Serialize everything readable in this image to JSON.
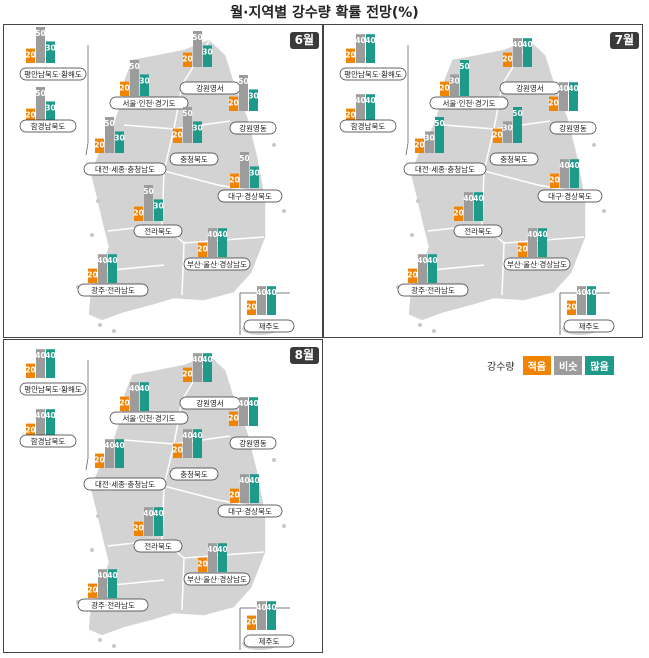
{
  "title": "월·지역별 강수량 확률 전망(%)",
  "legend": {
    "label": "강수량",
    "items": [
      {
        "name": "적음",
        "color": "#f08300"
      },
      {
        "name": "비슷",
        "color": "#9c9c9c"
      },
      {
        "name": "많음",
        "color": "#1e9a8a"
      }
    ]
  },
  "chart_data": [
    {
      "type": "bar",
      "month": "6월",
      "series_names": [
        "적음",
        "비슷",
        "많음"
      ],
      "regions": [
        {
          "name": "평안남북도·황해도",
          "values": [
            20,
            50,
            30
          ]
        },
        {
          "name": "함경남북도",
          "values": [
            20,
            50,
            30
          ]
        },
        {
          "name": "서울·인천·경기도",
          "values": [
            20,
            50,
            30
          ]
        },
        {
          "name": "강원영서",
          "values": [
            20,
            50,
            30
          ]
        },
        {
          "name": "강원영동",
          "values": [
            20,
            50,
            30
          ]
        },
        {
          "name": "대전·세종·충청남도",
          "values": [
            20,
            50,
            30
          ]
        },
        {
          "name": "충청북도",
          "values": [
            20,
            50,
            30
          ]
        },
        {
          "name": "대구·경상북도",
          "values": [
            20,
            50,
            30
          ]
        },
        {
          "name": "전라북도",
          "values": [
            20,
            50,
            30
          ]
        },
        {
          "name": "부산·울산·경상남도",
          "values": [
            20,
            40,
            40
          ]
        },
        {
          "name": "광주·전라남도",
          "values": [
            20,
            40,
            40
          ]
        },
        {
          "name": "제주도",
          "values": [
            20,
            40,
            40
          ]
        }
      ]
    },
    {
      "type": "bar",
      "month": "7월",
      "series_names": [
        "적음",
        "비슷",
        "많음"
      ],
      "regions": [
        {
          "name": "평안남북도·황해도",
          "values": [
            20,
            40,
            40
          ]
        },
        {
          "name": "함경남북도",
          "values": [
            20,
            40,
            40
          ]
        },
        {
          "name": "서울·인천·경기도",
          "values": [
            20,
            30,
            50
          ]
        },
        {
          "name": "강원영서",
          "values": [
            20,
            40,
            40
          ]
        },
        {
          "name": "강원영동",
          "values": [
            20,
            40,
            40
          ]
        },
        {
          "name": "대전·세종·충청남도",
          "values": [
            20,
            30,
            50
          ]
        },
        {
          "name": "충청북도",
          "values": [
            20,
            30,
            50
          ]
        },
        {
          "name": "대구·경상북도",
          "values": [
            20,
            40,
            40
          ]
        },
        {
          "name": "전라북도",
          "values": [
            20,
            40,
            40
          ]
        },
        {
          "name": "부산·울산·경상남도",
          "values": [
            20,
            40,
            40
          ]
        },
        {
          "name": "광주·전라남도",
          "values": [
            20,
            40,
            40
          ]
        },
        {
          "name": "제주도",
          "values": [
            20,
            40,
            40
          ]
        }
      ]
    },
    {
      "type": "bar",
      "month": "8월",
      "series_names": [
        "적음",
        "비슷",
        "많음"
      ],
      "regions": [
        {
          "name": "평안남북도·황해도",
          "values": [
            20,
            40,
            40
          ]
        },
        {
          "name": "함경남북도",
          "values": [
            20,
            40,
            40
          ]
        },
        {
          "name": "서울·인천·경기도",
          "values": [
            20,
            40,
            40
          ]
        },
        {
          "name": "강원영서",
          "values": [
            20,
            40,
            40
          ]
        },
        {
          "name": "강원영동",
          "values": [
            20,
            40,
            40
          ]
        },
        {
          "name": "대전·세종·충청남도",
          "values": [
            20,
            40,
            40
          ]
        },
        {
          "name": "충청북도",
          "values": [
            20,
            40,
            40
          ]
        },
        {
          "name": "대구·경상북도",
          "values": [
            20,
            40,
            40
          ]
        },
        {
          "name": "전라북도",
          "values": [
            20,
            40,
            40
          ]
        },
        {
          "name": "부산·울산·경상남도",
          "values": [
            20,
            40,
            40
          ]
        },
        {
          "name": "광주·전라남도",
          "values": [
            20,
            40,
            40
          ]
        },
        {
          "name": "제주도",
          "values": [
            20,
            40,
            40
          ]
        }
      ]
    }
  ]
}
